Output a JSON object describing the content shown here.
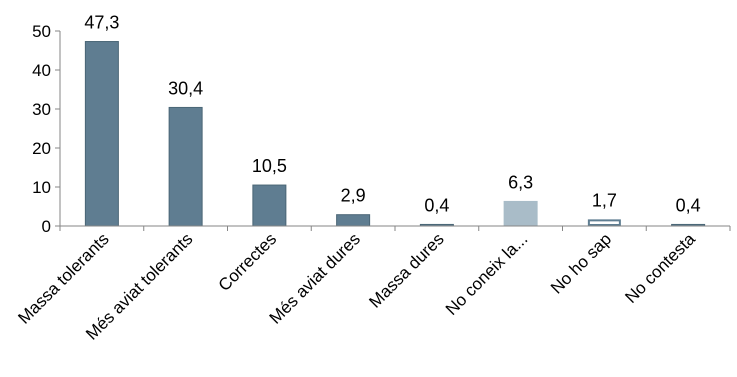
{
  "chart_data": {
    "type": "bar",
    "categories": [
      "Massa tolerants",
      "Més aviat tolerants",
      "Correctes",
      "Més aviat dures",
      "Massa dures",
      "No coneix la...",
      "No ho sap",
      "No contesta"
    ],
    "values": [
      47.3,
      30.4,
      10.5,
      2.9,
      0.4,
      6.3,
      1.7,
      0.4
    ],
    "value_labels": [
      "47,3",
      "30,4",
      "10,5",
      "2,9",
      "0,4",
      "6,3",
      "1,7",
      "0,4"
    ],
    "bar_styles": [
      "solid",
      "solid",
      "solid",
      "solid",
      "solid",
      "light",
      "outline",
      "solid"
    ],
    "y_ticks": [
      0,
      10,
      20,
      30,
      40,
      50
    ],
    "ylim": [
      0,
      50
    ],
    "title": "",
    "xlabel": "",
    "ylabel": "",
    "grid": false,
    "legend": "none",
    "colors": {
      "bar": "#5f7d91",
      "bar_stroke": "#4a6676",
      "bar_light": "#a9bcc8",
      "bar_outline_stroke": "#5f7d91",
      "bar_outline_fill": "#ffffff",
      "axis": "#868686",
      "text": "#000000"
    }
  }
}
